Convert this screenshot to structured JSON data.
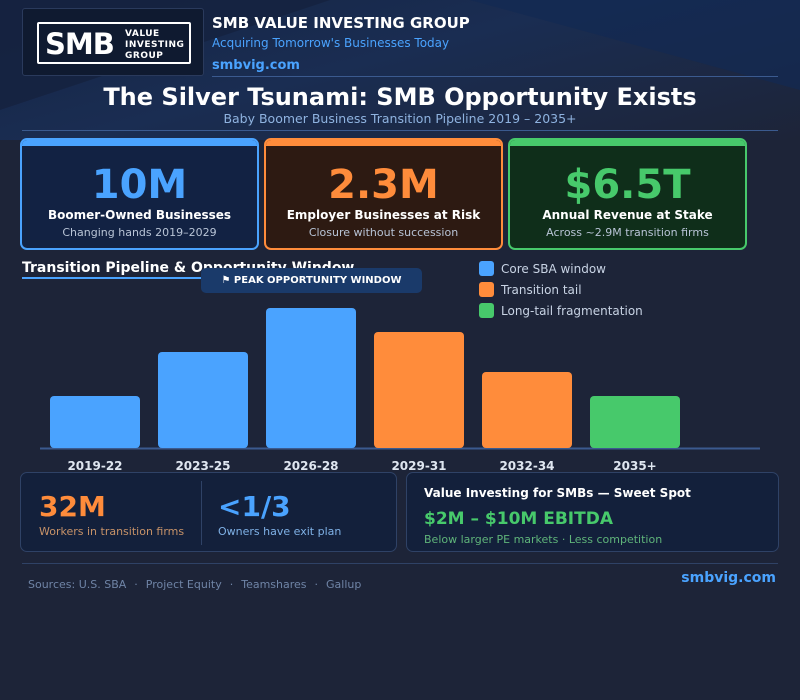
{
  "brand": {
    "logo_mark": "SMB",
    "logo_lines": [
      "VALUE",
      "INVESTING",
      "GROUP"
    ],
    "name": "SMB VALUE INVESTING GROUP",
    "tagline": "Acquiring Tomorrow's Businesses Today",
    "url": "smbvig.com"
  },
  "title": "The Silver Tsunami: SMB Opportunity Exists",
  "subtitle": "Baby Boomer Business Transition Pipeline  2019 – 2035+",
  "kpis": [
    {
      "value": "10M",
      "label": "Boomer-Owned Businesses",
      "sub": "Changing hands 2019–2029",
      "color": "#4aa3ff"
    },
    {
      "value": "2.3M",
      "label": "Employer Businesses at Risk",
      "sub": "Closure without succession",
      "color": "#ff8c3b"
    },
    {
      "value": "$6.5T",
      "label": "Annual Revenue at Stake",
      "sub": "Across ~2.9M transition firms",
      "color": "#47c96b"
    }
  ],
  "section_title": "Transition Pipeline & Opportunity Window",
  "peak_badge": "⚑ PEAK OPPORTUNITY WINDOW",
  "chart_data": {
    "type": "bar",
    "title": "Transition Pipeline & Opportunity Window",
    "categories": [
      "2019-22",
      "2023-25",
      "2026-28",
      "2029-31",
      "2032-34",
      "2035+"
    ],
    "values": [
      2.6,
      4.8,
      7.0,
      5.8,
      3.8,
      2.6
    ],
    "value_unit": "relative volume (no axis shown)",
    "ylim": [
      0,
      7.0
    ],
    "colors": [
      "#4aa3ff",
      "#4aa3ff",
      "#4aa3ff",
      "#ff8c3b",
      "#ff8c3b",
      "#47c96b"
    ],
    "legend": [
      {
        "label": "Core SBA window",
        "color": "#4aa3ff"
      },
      {
        "label": "Transition tail",
        "color": "#ff8c3b"
      },
      {
        "label": "Long-tail fragmentation",
        "color": "#47c96b"
      }
    ],
    "legend_position": "top-right",
    "xlabel": "",
    "ylabel": "",
    "grid": false
  },
  "stats": {
    "workers": {
      "value": "32M",
      "label": "Workers in transition firms"
    },
    "exit_plan": {
      "value": "<1/3",
      "label": "Owners have exit plan"
    }
  },
  "value_investing": {
    "title": "Value Investing for SMBs — Sweet Spot",
    "range": "$2M – $10M EBITDA",
    "sub": "Below larger PE markets  ·  Less competition"
  },
  "sources": [
    "Sources: U.S. SBA",
    "Project Equity",
    "Teamshares",
    "Gallup"
  ],
  "footer_url": "smbvig.com"
}
